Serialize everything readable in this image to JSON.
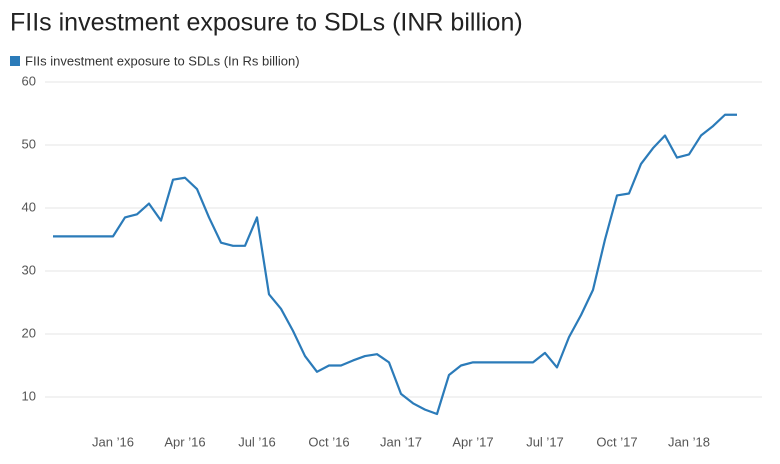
{
  "chart_data": {
    "type": "line",
    "title": "FIIs investment exposure to SDLs (INR billion)",
    "categories": [
      null,
      null,
      null,
      null,
      null,
      "Jan ’16",
      null,
      null,
      null,
      null,
      null,
      "Apr ’16",
      null,
      null,
      null,
      null,
      null,
      "Jul ’16",
      null,
      null,
      null,
      null,
      null,
      "Oct ’16",
      null,
      null,
      null,
      null,
      null,
      "Jan ’17",
      null,
      null,
      null,
      null,
      null,
      "Apr ’17",
      null,
      null,
      null,
      null,
      null,
      "Jul ’17",
      null,
      null,
      null,
      null,
      null,
      "Oct ’17",
      null,
      null,
      null,
      null,
      null,
      "Jan ’18",
      null,
      null,
      null,
      null
    ],
    "series": [
      {
        "name": "FIIs investment exposure to SDLs (In Rs billion)",
        "color": "#2b7bb9",
        "values": [
          35.5,
          35.5,
          35.5,
          35.5,
          35.5,
          35.5,
          38.5,
          39,
          40.7,
          38,
          44.5,
          44.8,
          43,
          38.5,
          34.5,
          34,
          34,
          38.5,
          26.3,
          24,
          20.5,
          16.5,
          14,
          15,
          15,
          15.8,
          16.5,
          16.8,
          15.5,
          10.5,
          9,
          8,
          7.3,
          13.5,
          15,
          15.5,
          15.5,
          15.5,
          15.5,
          15.5,
          15.5,
          17,
          14.7,
          19.5,
          23,
          27,
          35,
          42,
          42.3,
          47,
          49.5,
          51.5,
          48,
          48.5,
          51.5,
          53,
          54.8,
          54.8
        ]
      }
    ],
    "ylim": [
      5,
      60
    ],
    "yticks": [
      10,
      20,
      30,
      40,
      50,
      60
    ],
    "grid": true,
    "legend": "top-left"
  }
}
